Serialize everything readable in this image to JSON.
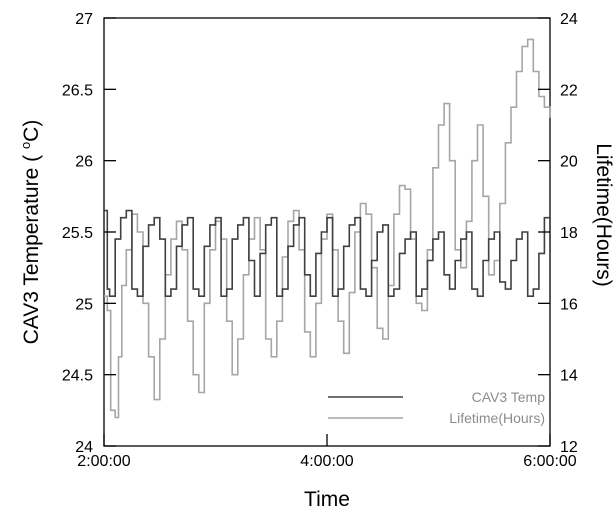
{
  "chart_data": {
    "type": "line",
    "title": "",
    "xlabel": "Time",
    "ylabel_left": "CAV3 Temperature ( °C)",
    "ylabel_left_parts": [
      "CAV3 Temperature ( ",
      "o",
      "C)"
    ],
    "ylabel_right": "Lifetime(Hours)",
    "x_ticks": [
      "2:00:00",
      "4:00:00",
      "6:00:00"
    ],
    "x_range_hours": [
      2,
      6
    ],
    "ylim_left": [
      24,
      27
    ],
    "left_ticks": [
      "24",
      "24.5",
      "25",
      "25.5",
      "26",
      "26.5",
      "27"
    ],
    "ylim_right": [
      12,
      24
    ],
    "right_ticks": [
      "12",
      "14",
      "16",
      "18",
      "20",
      "22",
      "24"
    ],
    "grid": false,
    "legend_position": "bottom-right",
    "colors": {
      "cav3_temp": "#404040",
      "lifetime": "#a6a6a6"
    },
    "series": [
      {
        "name": "CAV3 Temp",
        "axis": "left",
        "x_hours": [
          2.0,
          2.03,
          2.05,
          2.1,
          2.15,
          2.2,
          2.25,
          2.3,
          2.35,
          2.4,
          2.45,
          2.5,
          2.55,
          2.6,
          2.65,
          2.7,
          2.75,
          2.8,
          2.85,
          2.9,
          2.95,
          3.0,
          3.05,
          3.1,
          3.15,
          3.2,
          3.25,
          3.3,
          3.35,
          3.4,
          3.45,
          3.5,
          3.55,
          3.6,
          3.65,
          3.7,
          3.75,
          3.8,
          3.85,
          3.9,
          3.95,
          4.0,
          4.05,
          4.1,
          4.15,
          4.2,
          4.25,
          4.3,
          4.35,
          4.4,
          4.45,
          4.5,
          4.55,
          4.6,
          4.65,
          4.7,
          4.75,
          4.8,
          4.85,
          4.9,
          4.95,
          5.0,
          5.05,
          5.1,
          5.15,
          5.2,
          5.25,
          5.3,
          5.35,
          5.4,
          5.45,
          5.5,
          5.55,
          5.6,
          5.65,
          5.7,
          5.75,
          5.8,
          5.85,
          5.9,
          5.95,
          6.0
        ],
        "y": [
          25.65,
          25.1,
          25.05,
          25.45,
          25.6,
          25.65,
          25.1,
          25.05,
          25.4,
          25.55,
          25.6,
          25.45,
          25.05,
          25.1,
          25.4,
          25.55,
          25.6,
          25.1,
          25.05,
          25.4,
          25.55,
          25.6,
          25.05,
          25.1,
          25.45,
          25.55,
          25.6,
          25.3,
          25.05,
          25.35,
          25.55,
          25.6,
          25.05,
          25.1,
          25.4,
          25.55,
          25.6,
          25.2,
          25.05,
          25.35,
          25.5,
          25.6,
          25.05,
          25.1,
          25.4,
          25.55,
          25.6,
          25.1,
          25.05,
          25.3,
          25.5,
          25.55,
          25.05,
          25.1,
          25.35,
          25.45,
          25.5,
          25.05,
          25.1,
          25.3,
          25.45,
          25.5,
          25.2,
          25.1,
          25.3,
          25.45,
          25.5,
          25.1,
          25.05,
          25.3,
          25.45,
          25.5,
          25.15,
          25.1,
          25.3,
          25.45,
          25.5,
          25.05,
          25.1,
          25.35,
          25.6,
          25.0
        ]
      },
      {
        "name": "Lifetime(Hours)",
        "axis": "right",
        "x_hours": [
          2.0,
          2.03,
          2.06,
          2.1,
          2.13,
          2.16,
          2.2,
          2.25,
          2.3,
          2.35,
          2.4,
          2.45,
          2.5,
          2.55,
          2.6,
          2.65,
          2.7,
          2.75,
          2.8,
          2.85,
          2.9,
          2.95,
          3.0,
          3.05,
          3.1,
          3.15,
          3.2,
          3.25,
          3.3,
          3.35,
          3.4,
          3.45,
          3.5,
          3.55,
          3.6,
          3.65,
          3.7,
          3.75,
          3.8,
          3.85,
          3.9,
          3.95,
          4.0,
          4.05,
          4.1,
          4.15,
          4.2,
          4.25,
          4.3,
          4.35,
          4.4,
          4.45,
          4.5,
          4.55,
          4.6,
          4.65,
          4.7,
          4.75,
          4.8,
          4.85,
          4.9,
          4.95,
          5.0,
          5.05,
          5.1,
          5.15,
          5.2,
          5.25,
          5.3,
          5.35,
          5.4,
          5.45,
          5.5,
          5.55,
          5.6,
          5.65,
          5.7,
          5.75,
          5.8,
          5.85,
          5.9,
          5.95,
          6.0
        ],
        "y": [
          16.2,
          15.8,
          13.0,
          12.8,
          14.5,
          16.5,
          17.5,
          18.5,
          18.0,
          16.0,
          14.5,
          13.3,
          15.0,
          16.8,
          17.8,
          18.3,
          17.5,
          15.5,
          14.0,
          13.5,
          16.0,
          17.5,
          18.3,
          17.8,
          15.5,
          14.0,
          15.0,
          16.8,
          17.8,
          18.4,
          17.5,
          15.0,
          14.5,
          15.5,
          17.3,
          18.3,
          18.6,
          17.5,
          15.2,
          14.5,
          16.0,
          17.8,
          18.5,
          17.5,
          15.5,
          14.6,
          16.3,
          18.0,
          18.8,
          18.5,
          17.0,
          15.3,
          15.0,
          16.5,
          18.5,
          19.3,
          19.2,
          17.8,
          16.0,
          15.8,
          17.5,
          19.8,
          21.0,
          21.6,
          20.0,
          17.5,
          17.0,
          18.3,
          20.0,
          21.0,
          19.0,
          16.8,
          17.2,
          18.8,
          20.5,
          21.5,
          22.5,
          23.2,
          23.4,
          22.5,
          21.8,
          21.5,
          21.2
        ]
      }
    ]
  }
}
